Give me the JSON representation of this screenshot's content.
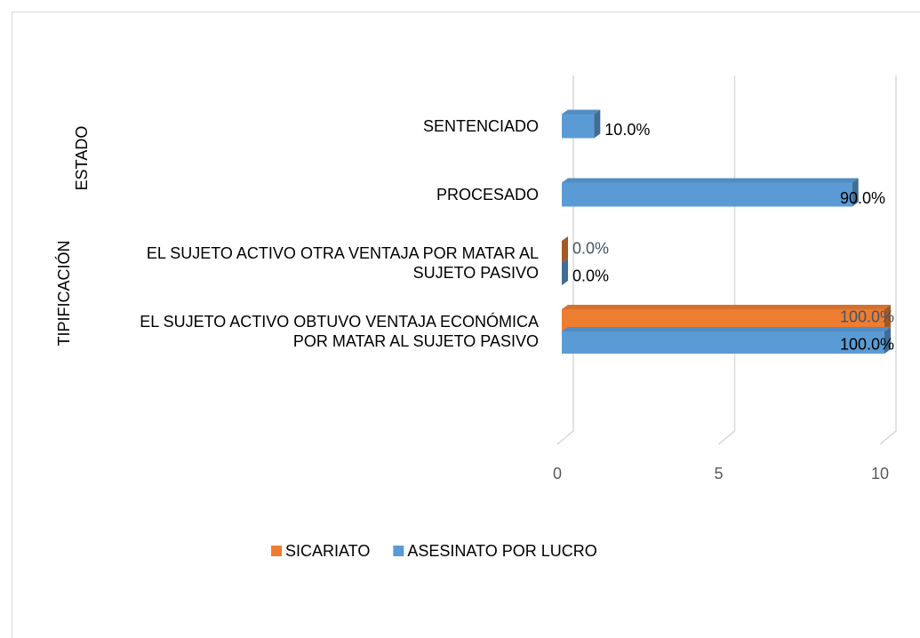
{
  "chart_data": {
    "type": "bar3d_horizontal",
    "categories": [
      "EL SUJETO ACTIVO OBTUVO VENTAJA ECONÓMICA POR MATAR AL SUJETO PASIVO",
      "EL SUJETO ACTIVO OTRA VENTAJA  POR MATAR AL SUJETO PASIVO",
      "PROCESADO",
      "SENTENCIADO"
    ],
    "group_labels": [
      "TIPIFICACIÓN",
      "ESTADO"
    ],
    "series": [
      {
        "name": "SICARIATO",
        "color": "#ed7d31",
        "values": [
          10,
          0,
          null,
          null
        ],
        "value_labels": [
          "100.0%",
          "0.0%",
          null,
          null
        ]
      },
      {
        "name": "ASESINATO POR LUCRO",
        "color": "#5b9bd5",
        "values": [
          10,
          0,
          9,
          1
        ],
        "value_labels": [
          "100.0%",
          "0.0%",
          "90.0%",
          "10.0%"
        ]
      }
    ],
    "xlim": [
      0,
      10
    ],
    "xticks": [
      0,
      5,
      10
    ],
    "grid": true,
    "legend": "bottom"
  }
}
